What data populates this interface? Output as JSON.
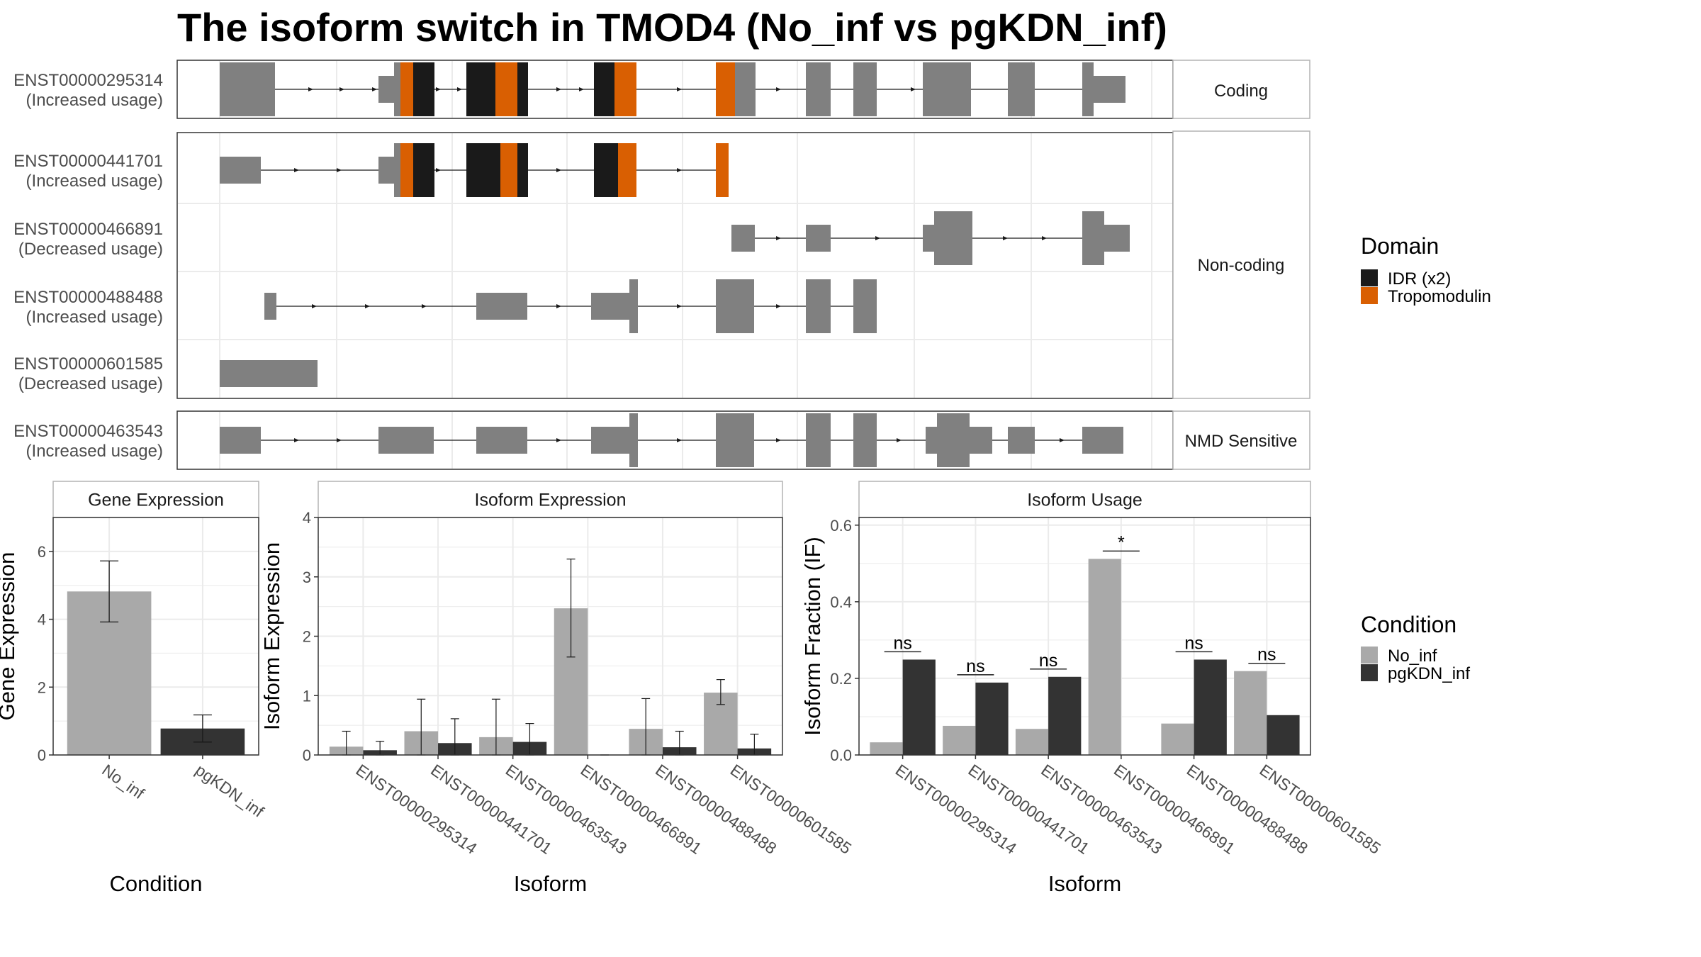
{
  "title": "The isoform switch in TMOD4 (No_inf vs pgKDN_inf)",
  "colors": {
    "exon": "#808080",
    "idr": "#1a1a1a",
    "tropomodulin": "#d95f02",
    "no_inf": "#a9a9a9",
    "pgkdn_inf": "#333333",
    "grid": "#ebebeb",
    "strip_border": "#b3b3b3"
  },
  "domain_legend": {
    "title": "Domain",
    "items": [
      {
        "label": "IDR (x2)",
        "color": "#1a1a1a"
      },
      {
        "label": "Tropomodulin",
        "color": "#d95f02"
      }
    ]
  },
  "condition_legend": {
    "title": "Condition",
    "items": [
      {
        "label": "No_inf",
        "color": "#a9a9a9"
      },
      {
        "label": "pgKDN_inf",
        "color": "#333333"
      }
    ]
  },
  "structure_panels": [
    {
      "strip": "Coding",
      "isoforms": [
        "ENST00000295314"
      ]
    },
    {
      "strip": "Non-coding",
      "isoforms": [
        "ENST00000441701",
        "ENST00000466891",
        "ENST00000488488",
        "ENST00000601585"
      ]
    },
    {
      "strip": "NMD Sensitive",
      "isoforms": [
        "ENST00000463543"
      ]
    }
  ],
  "isoform_rows": [
    {
      "id": "ENST00000295314",
      "usage": "(Increased usage)"
    },
    {
      "id": "ENST00000441701",
      "usage": "(Increased usage)"
    },
    {
      "id": "ENST00000466891",
      "usage": "(Decreased usage)"
    },
    {
      "id": "ENST00000488488",
      "usage": "(Increased usage)"
    },
    {
      "id": "ENST00000601585",
      "usage": "(Decreased usage)"
    },
    {
      "id": "ENST00000463543",
      "usage": "(Increased usage)"
    }
  ],
  "chart_data": [
    {
      "type": "bar",
      "title": "Gene Expression",
      "xlabel": "Condition",
      "ylabel": "Gene Expression",
      "categories": [
        "No_inf",
        "pgKDN_inf"
      ],
      "values": [
        4.82,
        0.78
      ],
      "error": [
        [
          3.92,
          5.72
        ],
        [
          0.38,
          1.18
        ]
      ],
      "ylim": [
        0,
        7
      ],
      "yticks": [
        0,
        2,
        4,
        6
      ]
    },
    {
      "type": "bar",
      "title": "Isoform Expression",
      "xlabel": "Isoform",
      "ylabel": "Isoform Expression",
      "categories": [
        "ENST00000295314",
        "ENST00000441701",
        "ENST00000463543",
        "ENST00000466891",
        "ENST00000488488",
        "ENST00000601585"
      ],
      "series": [
        {
          "name": "No_inf",
          "values": [
            0.14,
            0.4,
            0.3,
            2.47,
            0.44,
            1.05
          ],
          "error": [
            [
              0.0,
              0.4
            ],
            [
              0.0,
              0.94
            ],
            [
              0.0,
              0.94
            ],
            [
              1.65,
              3.3
            ],
            [
              0.0,
              0.95
            ],
            [
              0.85,
              1.27
            ]
          ]
        },
        {
          "name": "pgKDN_inf",
          "values": [
            0.08,
            0.2,
            0.22,
            0.0,
            0.13,
            0.11
          ],
          "error": [
            [
              0.0,
              0.23
            ],
            [
              0.0,
              0.61
            ],
            [
              0.0,
              0.53
            ],
            [
              0.0,
              0.0
            ],
            [
              0.0,
              0.4
            ],
            [
              0.0,
              0.35
            ]
          ]
        }
      ],
      "ylim": [
        0,
        4
      ],
      "yticks": [
        0,
        1,
        2,
        3,
        4
      ]
    },
    {
      "type": "bar",
      "title": "Isoform Usage",
      "xlabel": "Isoform",
      "ylabel": "Isoform Fraction (IF)",
      "categories": [
        "ENST00000295314",
        "ENST00000441701",
        "ENST00000463543",
        "ENST00000466891",
        "ENST00000488488",
        "ENST00000601585"
      ],
      "series": [
        {
          "name": "No_inf",
          "values": [
            0.033,
            0.076,
            0.068,
            0.512,
            0.082,
            0.219
          ]
        },
        {
          "name": "pgKDN_inf",
          "values": [
            0.249,
            0.189,
            0.204,
            0.0,
            0.249,
            0.104
          ]
        }
      ],
      "significance": [
        "ns",
        "ns",
        "ns",
        "*",
        "ns",
        "ns"
      ],
      "ylim": [
        0,
        0.62
      ],
      "yticks": [
        0.0,
        0.2,
        0.4,
        0.6
      ],
      "ytick_labels": [
        "0.0",
        "0.2",
        "0.4",
        "0.6"
      ]
    }
  ]
}
